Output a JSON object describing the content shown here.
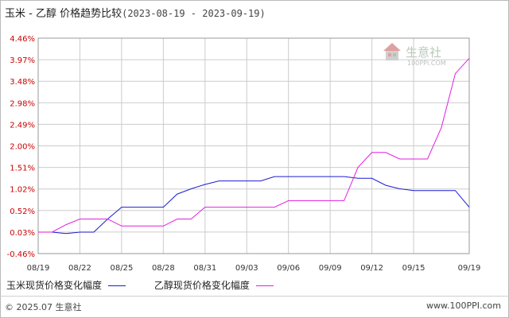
{
  "header": {
    "title": "玉米 - 乙醇 价格趋势比较",
    "date_range": "(2023-08-19 - 2023-09-19)"
  },
  "watermark": {
    "brand": "生意社",
    "url": "100PPI.COM"
  },
  "footer": {
    "copyright": "© 2025.07 生意社",
    "url": "www.100PPI.com"
  },
  "colors": {
    "corn": "#1c1cd2",
    "ethanol": "#e21fe2",
    "axis_label": "#cc0000",
    "grid": "#cccccc"
  },
  "chart_data": {
    "type": "line",
    "title": "玉米 - 乙醇 价格趋势比较",
    "xlabel": "",
    "ylabel": "",
    "ylim": [
      -0.46,
      4.46
    ],
    "y_ticks": [
      "-0.46%",
      "0.03%",
      "0.52%",
      "1.02%",
      "1.51%",
      "2.00%",
      "2.49%",
      "2.98%",
      "3.48%",
      "3.97%",
      "4.46%"
    ],
    "x_ticks": [
      "08/19",
      "08/22",
      "08/25",
      "08/28",
      "08/31",
      "09/03",
      "09/06",
      "09/09",
      "09/12",
      "09/15",
      "09/19"
    ],
    "grid": true,
    "legend_position": "bottom",
    "series": [
      {
        "name": "玉米现货价格变化幅度",
        "color": "#1c1cd2",
        "points": [
          [
            "08/19",
            0.03
          ],
          [
            "08/20",
            0.03
          ],
          [
            "08/21",
            0.0
          ],
          [
            "08/22",
            0.03
          ],
          [
            "08/23",
            0.03
          ],
          [
            "08/24",
            0.33
          ],
          [
            "08/25",
            0.6
          ],
          [
            "08/26",
            0.6
          ],
          [
            "08/27",
            0.6
          ],
          [
            "08/28",
            0.6
          ],
          [
            "08/29",
            0.9
          ],
          [
            "08/30",
            1.02
          ],
          [
            "08/31",
            1.12
          ],
          [
            "09/01",
            1.2
          ],
          [
            "09/02",
            1.2
          ],
          [
            "09/03",
            1.2
          ],
          [
            "09/04",
            1.2
          ],
          [
            "09/05",
            1.3
          ],
          [
            "09/06",
            1.3
          ],
          [
            "09/07",
            1.3
          ],
          [
            "09/08",
            1.3
          ],
          [
            "09/09",
            1.3
          ],
          [
            "09/10",
            1.3
          ],
          [
            "09/11",
            1.26
          ],
          [
            "09/12",
            1.26
          ],
          [
            "09/13",
            1.1
          ],
          [
            "09/14",
            1.02
          ],
          [
            "09/15",
            0.98
          ],
          [
            "09/16",
            0.98
          ],
          [
            "09/17",
            0.98
          ],
          [
            "09/18",
            0.98
          ],
          [
            "09/19",
            0.6
          ]
        ]
      },
      {
        "name": "乙醇现货价格变化幅度",
        "color": "#e21fe2",
        "points": [
          [
            "08/19",
            0.03
          ],
          [
            "08/20",
            0.03
          ],
          [
            "08/21",
            0.2
          ],
          [
            "08/22",
            0.33
          ],
          [
            "08/23",
            0.33
          ],
          [
            "08/24",
            0.33
          ],
          [
            "08/25",
            0.17
          ],
          [
            "08/26",
            0.17
          ],
          [
            "08/27",
            0.17
          ],
          [
            "08/28",
            0.17
          ],
          [
            "08/29",
            0.33
          ],
          [
            "08/30",
            0.33
          ],
          [
            "08/31",
            0.6
          ],
          [
            "09/01",
            0.6
          ],
          [
            "09/02",
            0.6
          ],
          [
            "09/03",
            0.6
          ],
          [
            "09/04",
            0.6
          ],
          [
            "09/05",
            0.6
          ],
          [
            "09/06",
            0.75
          ],
          [
            "09/07",
            0.75
          ],
          [
            "09/08",
            0.75
          ],
          [
            "09/09",
            0.75
          ],
          [
            "09/10",
            0.75
          ],
          [
            "09/11",
            1.51
          ],
          [
            "09/12",
            1.85
          ],
          [
            "09/13",
            1.85
          ],
          [
            "09/14",
            1.7
          ],
          [
            "09/15",
            1.7
          ],
          [
            "09/16",
            1.7
          ],
          [
            "09/17",
            2.42
          ],
          [
            "09/18",
            3.65
          ],
          [
            "09/19",
            4.0
          ]
        ]
      }
    ]
  }
}
